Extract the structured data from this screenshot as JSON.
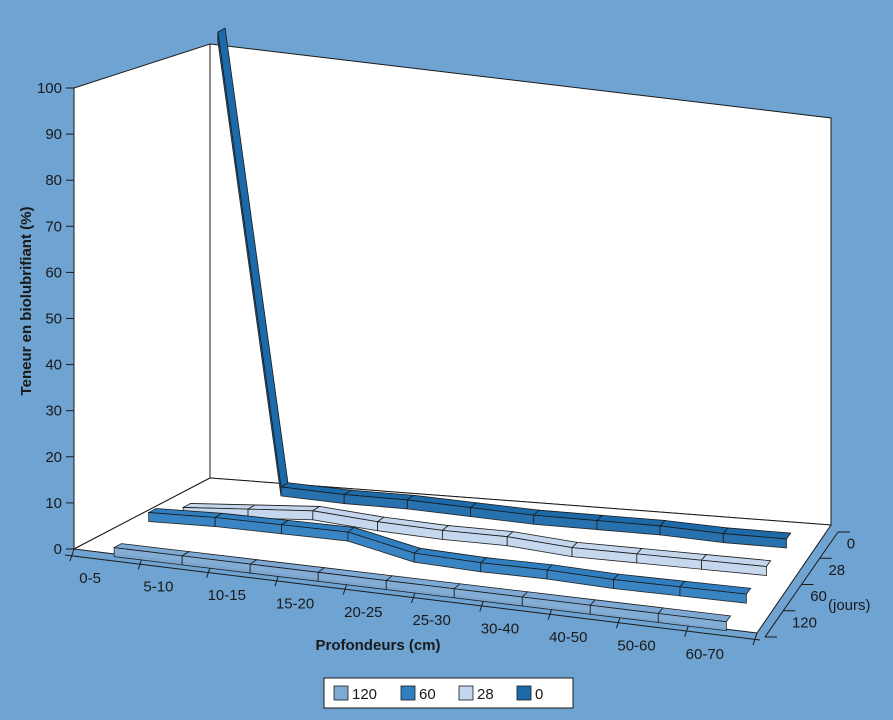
{
  "chart_data": {
    "type": "line",
    "chart_style": "3d-ribbon",
    "xlabel": "Profondeurs (cm)",
    "ylabel": "Teneur en biolubrifiant  (%)",
    "zlabel": "(jours)",
    "ylim": [
      0,
      100
    ],
    "yticks": [
      "0",
      "10",
      "20",
      "30",
      "40",
      "50",
      "60",
      "70",
      "80",
      "90",
      "100"
    ],
    "categories": [
      "0-5",
      "5-10",
      "10-15",
      "15-20",
      "20-25",
      "25-30",
      "30-40",
      "40-50",
      "50-60",
      "60-70"
    ],
    "z_categories": [
      "0",
      "28",
      "60",
      "120"
    ],
    "series": [
      {
        "name": "120",
        "color": "#7ea9d4",
        "values": [
          0.5,
          0.5,
          0.5,
          0.5,
          0.5,
          0.5,
          0.5,
          0.5,
          0.5,
          0.5
        ]
      },
      {
        "name": "60",
        "color": "#2f7fc0",
        "values": [
          4,
          4.5,
          4.5,
          4.5,
          1.5,
          1,
          1,
          0.5,
          0.5,
          0.5
        ]
      },
      {
        "name": "28",
        "color": "#c3d6ee",
        "values": [
          1,
          2,
          3,
          2,
          1.5,
          1.5,
          0.5,
          0.5,
          0.5,
          0.5
        ]
      },
      {
        "name": "0",
        "color": "#1c6aaa",
        "values": [
          100,
          2.5,
          2,
          2,
          1.5,
          1,
          1,
          1,
          0.5,
          0.5
        ]
      }
    ],
    "legend_position": "bottom"
  }
}
